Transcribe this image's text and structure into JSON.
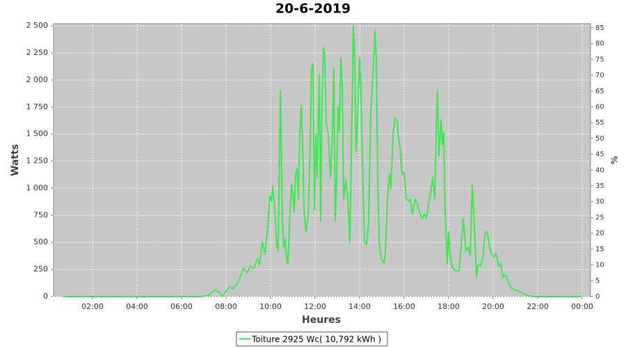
{
  "chart_data": {
    "type": "line",
    "title": "20-6-2019",
    "x_label": "Heures",
    "y_label": "Watts",
    "y2_label": "%",
    "xlim": [
      0.25,
      24.375
    ],
    "xticks": [
      {
        "value": 2,
        "label": "02:00"
      },
      {
        "value": 4,
        "label": "04:00"
      },
      {
        "value": 6,
        "label": "06:00"
      },
      {
        "value": 8,
        "label": "08:00"
      },
      {
        "value": 10,
        "label": "10:00"
      },
      {
        "value": 12,
        "label": "12:00"
      },
      {
        "value": 14,
        "label": "14:00"
      },
      {
        "value": 16,
        "label": "16:00"
      },
      {
        "value": 18,
        "label": "18:00"
      },
      {
        "value": 20,
        "label": "20:00"
      },
      {
        "value": 22,
        "label": "22:00"
      },
      {
        "value": 24,
        "label": "00:00"
      }
    ],
    "ylim": [
      0,
      2520
    ],
    "yticks": [
      0,
      250,
      500,
      750,
      {
        "value": 1000,
        "label": "1 000"
      },
      {
        "value": 1250,
        "label": "1 250"
      },
      {
        "value": 1500,
        "label": "1 500"
      },
      {
        "value": 1750,
        "label": "1 750"
      },
      {
        "value": 2000,
        "label": "2 000"
      },
      {
        "value": 2250,
        "label": "2 250"
      },
      {
        "value": 2500,
        "label": "2 500"
      }
    ],
    "y2lim": [
      0,
      86.3
    ],
    "y2ticks": [
      0,
      5,
      10,
      15,
      20,
      25,
      30,
      35,
      40,
      45,
      50,
      55,
      60,
      65,
      70,
      75,
      80,
      85
    ],
    "grid": true,
    "background": "#c8c8c8",
    "x": [
      0.66,
      6.9,
      7.22,
      7.47,
      7.69,
      7.84,
      8.0,
      8.16,
      8.31,
      8.47,
      8.63,
      8.78,
      8.94,
      9.09,
      9.25,
      9.41,
      9.5,
      9.63,
      9.75,
      9.88,
      9.97,
      10.03,
      10.09,
      10.19,
      10.28,
      10.34,
      10.44,
      10.53,
      10.59,
      10.66,
      10.72,
      10.78,
      10.88,
      10.94,
      11.0,
      11.06,
      11.13,
      11.19,
      11.25,
      11.31,
      11.38,
      11.44,
      11.5,
      11.59,
      11.69,
      11.78,
      11.84,
      11.91,
      11.97,
      12.03,
      12.09,
      12.19,
      12.25,
      12.31,
      12.38,
      12.44,
      12.5,
      12.59,
      12.69,
      12.78,
      12.84,
      12.91,
      12.97,
      13.03,
      13.09,
      13.16,
      13.22,
      13.28,
      13.38,
      13.47,
      13.56,
      13.66,
      13.72,
      13.78,
      13.84,
      13.94,
      14.0,
      14.06,
      14.13,
      14.22,
      14.31,
      14.41,
      14.5,
      14.59,
      14.69,
      14.75,
      14.81,
      14.88,
      14.97,
      15.09,
      15.16,
      15.25,
      15.34,
      15.41,
      15.5,
      15.59,
      15.69,
      15.75,
      15.84,
      15.91,
      16.0,
      16.09,
      16.22,
      16.28,
      16.38,
      16.5,
      16.59,
      16.69,
      16.81,
      16.91,
      17.0,
      17.13,
      17.22,
      17.28,
      17.38,
      17.44,
      17.5,
      17.56,
      17.66,
      17.72,
      17.78,
      17.84,
      17.94,
      18.0,
      18.06,
      18.16,
      18.28,
      18.47,
      18.56,
      18.66,
      18.78,
      18.88,
      18.97,
      19.06,
      19.16,
      19.25,
      19.34,
      19.44,
      19.53,
      19.63,
      19.72,
      19.81,
      19.91,
      20.03,
      20.13,
      20.25,
      20.34,
      20.44,
      20.56,
      20.69,
      20.81,
      20.97,
      21.13,
      21.34,
      21.53,
      21.75,
      23.94
    ],
    "series": [
      {
        "name": "Toiture 2925 Wc( 10,792 kWh )",
        "color": "#3ee84f",
        "values": [
          0,
          0,
          10,
          60,
          40,
          0,
          50,
          90,
          70,
          110,
          180,
          260,
          220,
          280,
          260,
          350,
          290,
          500,
          400,
          650,
          930,
          880,
          1020,
          800,
          460,
          420,
          1900,
          700,
          450,
          530,
          350,
          300,
          800,
          1040,
          950,
          780,
          1150,
          1180,
          900,
          1500,
          1760,
          1400,
          800,
          600,
          750,
          1400,
          2100,
          2150,
          800,
          1500,
          1100,
          2050,
          700,
          1800,
          2300,
          2200,
          1600,
          1500,
          1100,
          1500,
          2110,
          700,
          1100,
          1750,
          1530,
          2200,
          2000,
          900,
          1080,
          900,
          500,
          1700,
          2500,
          2200,
          1340,
          1800,
          2200,
          1900,
          1200,
          500,
          480,
          700,
          1700,
          2000,
          2460,
          2200,
          1200,
          500,
          350,
          310,
          400,
          900,
          1130,
          1000,
          1500,
          1650,
          1620,
          1450,
          1350,
          1130,
          1150,
          900,
          880,
          900,
          760,
          900,
          850,
          780,
          720,
          760,
          720,
          880,
          1000,
          1100,
          900,
          1550,
          1900,
          1300,
          1630,
          1400,
          1520,
          800,
          300,
          600,
          380,
          270,
          240,
          240,
          460,
          720,
          420,
          460,
          380,
          1030,
          650,
          180,
          300,
          280,
          350,
          580,
          600,
          500,
          400,
          360,
          400,
          280,
          310,
          180,
          200,
          130,
          80,
          60,
          50,
          30,
          10,
          0,
          0
        ]
      }
    ]
  }
}
